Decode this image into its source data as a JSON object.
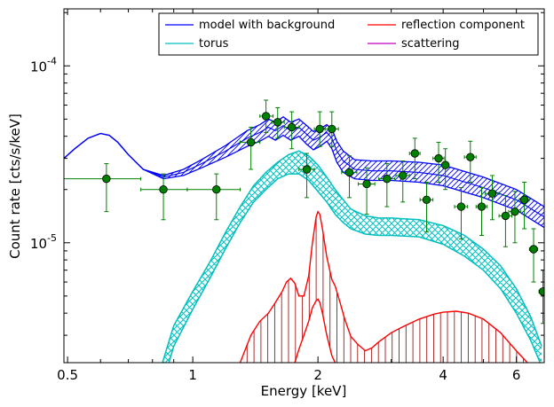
{
  "chart_data": {
    "type": "line",
    "title": "",
    "xlabel": "Energy [keV]",
    "ylabel": "Count rate [cts/s/keV]",
    "xscale": "log",
    "yscale": "log",
    "xlim": [
      0.49,
      7.0
    ],
    "ylim": [
      2.1e-06,
      0.00021
    ],
    "x_ticks": [
      {
        "value": 0.5,
        "label": "0.5"
      },
      {
        "value": 1,
        "label": "1"
      },
      {
        "value": 2,
        "label": "2"
      },
      {
        "value": 4,
        "label": "4"
      },
      {
        "value": 6,
        "label": "6"
      }
    ],
    "y_ticks": [
      {
        "value": 1e-05,
        "label": "10",
        "exp": "-5"
      },
      {
        "value": 0.0001,
        "label": "10",
        "exp": "-4"
      }
    ],
    "legend": {
      "placement": "top-right",
      "columns": 2,
      "entries": [
        {
          "label": "model with background",
          "color": "#0000ff"
        },
        {
          "label": "reflection component",
          "color": "#ff0000"
        },
        {
          "label": "torus",
          "color": "#00bfbf"
        },
        {
          "label": "scattering",
          "color": "#bf00bf"
        }
      ]
    },
    "series": [
      {
        "name": "model with background",
        "color": "#0000ff",
        "band": "hatch-line",
        "x": [
          0.49,
          0.52,
          0.56,
          0.6,
          0.63,
          0.66,
          0.7,
          0.76,
          0.85,
          0.95,
          1.05,
          1.2,
          1.35,
          1.45,
          1.52,
          1.58,
          1.65,
          1.72,
          1.8,
          1.88,
          1.95,
          2.02,
          2.1,
          2.16,
          2.22,
          2.3,
          2.45,
          2.7,
          3.0,
          3.5,
          4.0,
          5.0,
          6.0,
          7.0
        ],
        "y": [
          3e-05,
          3.4e-05,
          3.9e-05,
          4.15e-05,
          4.05e-05,
          3.7e-05,
          3.15e-05,
          2.6e-05,
          2.35e-05,
          2.5e-05,
          2.8e-05,
          3.3e-05,
          3.9e-05,
          4.2e-05,
          4.5e-05,
          4.3e-05,
          4.6e-05,
          4.3e-05,
          4.5e-05,
          4.1e-05,
          3.8e-05,
          3.95e-05,
          4.2e-05,
          3.9e-05,
          3.3e-05,
          2.9e-05,
          2.6e-05,
          2.55e-05,
          2.55e-05,
          2.5e-05,
          2.4e-05,
          2.05e-05,
          1.75e-05,
          1.4e-05
        ],
        "y_low": [
          3e-05,
          3.4e-05,
          3.9e-05,
          4.15e-05,
          4.05e-05,
          3.7e-05,
          3.15e-05,
          2.6e-05,
          2.3e-05,
          2.4e-05,
          2.65e-05,
          3.05e-05,
          3.5e-05,
          3.75e-05,
          4e-05,
          3.8e-05,
          4.05e-05,
          3.8e-05,
          4e-05,
          3.6e-05,
          3.35e-05,
          3.5e-05,
          3.75e-05,
          3.4e-05,
          2.85e-05,
          2.5e-05,
          2.3e-05,
          2.25e-05,
          2.25e-05,
          2.2e-05,
          2.1e-05,
          1.8e-05,
          1.53e-05,
          1.22e-05
        ],
        "y_high": [
          3e-05,
          3.4e-05,
          3.9e-05,
          4.15e-05,
          4.05e-05,
          3.7e-05,
          3.15e-05,
          2.6e-05,
          2.4e-05,
          2.6e-05,
          2.95e-05,
          3.55e-05,
          4.3e-05,
          4.65e-05,
          5e-05,
          4.8e-05,
          5.15e-05,
          4.8e-05,
          5e-05,
          4.6e-05,
          4.25e-05,
          4.4e-05,
          4.65e-05,
          4.4e-05,
          3.75e-05,
          3.3e-05,
          2.95e-05,
          2.9e-05,
          2.9e-05,
          2.85e-05,
          2.75e-05,
          2.35e-05,
          2e-05,
          1.6e-05
        ]
      },
      {
        "name": "torus",
        "color": "#00bfbf",
        "band": "crosshatch",
        "x": [
          0.84,
          0.9,
          1.0,
          1.1,
          1.2,
          1.3,
          1.4,
          1.5,
          1.6,
          1.7,
          1.8,
          1.9,
          2.0,
          2.1,
          2.2,
          2.3,
          2.4,
          2.6,
          2.8,
          3.0,
          3.5,
          4.0,
          4.5,
          5.0,
          5.5,
          6.0,
          6.5,
          6.9
        ],
        "y_low": [
          1.5e-06,
          2.6e-06,
          4.2e-06,
          6.3e-06,
          9.3e-06,
          1.3e-05,
          1.7e-05,
          2e-05,
          2.3e-05,
          2.45e-05,
          2.45e-05,
          2.25e-05,
          1.95e-05,
          1.7e-05,
          1.45e-05,
          1.3e-05,
          1.2e-05,
          1.12e-05,
          1.1e-05,
          1.1e-05,
          1.08e-05,
          9.8e-06,
          8.4e-06,
          7e-06,
          5.5e-06,
          4e-06,
          2.8e-06,
          2e-06
        ],
        "y_high": [
          2e-06,
          3.4e-06,
          5.3e-06,
          7.8e-06,
          1.15e-05,
          1.6e-05,
          2.1e-05,
          2.5e-05,
          2.85e-05,
          3.15e-05,
          3.3e-05,
          3.1e-05,
          2.75e-05,
          2.35e-05,
          2e-05,
          1.75e-05,
          1.55e-05,
          1.42e-05,
          1.38e-05,
          1.38e-05,
          1.35e-05,
          1.25e-05,
          1.1e-05,
          9.2e-06,
          7.4e-06,
          5.5e-06,
          3.8e-06,
          2.6e-06
        ]
      },
      {
        "name": "reflection component",
        "color": "#ff0000",
        "band": "vlines",
        "x": [
          1.3,
          1.38,
          1.45,
          1.52,
          1.58,
          1.64,
          1.68,
          1.72,
          1.76,
          1.8,
          1.85,
          1.9,
          1.94,
          1.98,
          2.0,
          2.02,
          2.05,
          2.1,
          2.16,
          2.2,
          2.26,
          2.32,
          2.4,
          2.5,
          2.6,
          2.7,
          2.8,
          3.0,
          3.2,
          3.5,
          3.8,
          4.0,
          4.3,
          4.6,
          5.0,
          5.5,
          6.0,
          6.5,
          7.0
        ],
        "y_high": [
          2.1e-06,
          3e-06,
          3.6e-06,
          4e-06,
          4.6e-06,
          5.3e-06,
          6e-06,
          6.3e-06,
          5.9e-06,
          5e-06,
          5e-06,
          6.5e-06,
          1e-05,
          1.4e-05,
          1.5e-05,
          1.45e-05,
          1.2e-05,
          8.3e-06,
          6.2e-06,
          5.7e-06,
          4.6e-06,
          3.7e-06,
          2.95e-06,
          2.65e-06,
          2.45e-06,
          2.55e-06,
          2.75e-06,
          3.1e-06,
          3.35e-06,
          3.7e-06,
          3.95e-06,
          4.05e-06,
          4.1e-06,
          4e-06,
          3.7e-06,
          3.1e-06,
          2.45e-06,
          2e-06,
          1.6e-06
        ],
        "y_low": [
          1.2e-06,
          1.5e-06,
          1.6e-06,
          1.7e-06,
          1.75e-06,
          1.8e-06,
          1.85e-06,
          1.9e-06,
          2.1e-06,
          2.5e-06,
          3e-06,
          3.6e-06,
          4.3e-06,
          4.7e-06,
          4.8e-06,
          4.6e-06,
          4e-06,
          3e-06,
          2.3e-06,
          2.1e-06,
          1.9e-06,
          1.8e-06,
          1.7e-06,
          1.6e-06,
          1.6e-06,
          1.6e-06,
          1.6e-06,
          1.6e-06,
          1.6e-06,
          1.6e-06,
          1.6e-06,
          1.6e-06,
          1.6e-06,
          1.6e-06,
          1.6e-06,
          1.6e-06,
          1.5e-06,
          1.4e-06,
          1.3e-06
        ]
      },
      {
        "name": "data",
        "color": "#008000",
        "type": "scatter",
        "points": [
          {
            "x": 0.62,
            "xlo": 0.49,
            "xhi": 0.75,
            "y": 2.3e-05,
            "ylo": 1.5e-05,
            "yhi": 2.8e-05
          },
          {
            "x": 0.85,
            "xlo": 0.75,
            "xhi": 0.97,
            "y": 2e-05,
            "ylo": 1.35e-05,
            "yhi": 2.45e-05
          },
          {
            "x": 1.14,
            "xlo": 0.97,
            "xhi": 1.3,
            "y": 2e-05,
            "ylo": 1.35e-05,
            "yhi": 2.45e-05
          },
          {
            "x": 1.38,
            "xlo": 1.3,
            "xhi": 1.45,
            "y": 3.7e-05,
            "ylo": 2.6e-05,
            "yhi": 4.5e-05
          },
          {
            "x": 1.5,
            "xlo": 1.45,
            "xhi": 1.56,
            "y": 5.2e-05,
            "ylo": 4.2e-05,
            "yhi": 6.4e-05
          },
          {
            "x": 1.6,
            "xlo": 1.55,
            "xhi": 1.66,
            "y": 4.8e-05,
            "ylo": 3.9e-05,
            "yhi": 5.8e-05
          },
          {
            "x": 1.73,
            "xlo": 1.66,
            "xhi": 1.8,
            "y": 4.5e-05,
            "ylo": 3.4e-05,
            "yhi": 5.5e-05
          },
          {
            "x": 1.88,
            "xlo": 1.8,
            "xhi": 1.96,
            "y": 2.6e-05,
            "ylo": 1.8e-05,
            "yhi": 3.2e-05
          },
          {
            "x": 2.02,
            "xlo": 1.96,
            "xhi": 2.08,
            "y": 4.4e-05,
            "ylo": 3.5e-05,
            "yhi": 5.5e-05
          },
          {
            "x": 2.16,
            "xlo": 2.08,
            "xhi": 2.24,
            "y": 4.4e-05,
            "ylo": 3.5e-05,
            "yhi": 5.5e-05
          },
          {
            "x": 2.38,
            "xlo": 2.28,
            "xhi": 2.48,
            "y": 2.5e-05,
            "ylo": 1.8e-05,
            "yhi": 3.1e-05
          },
          {
            "x": 2.62,
            "xlo": 2.5,
            "xhi": 2.74,
            "y": 2.15e-05,
            "ylo": 1.45e-05,
            "yhi": 2.65e-05
          },
          {
            "x": 2.93,
            "xlo": 2.8,
            "xhi": 3.06,
            "y": 2.3e-05,
            "ylo": 1.6e-05,
            "yhi": 2.8e-05
          },
          {
            "x": 3.2,
            "xlo": 3.08,
            "xhi": 3.32,
            "y": 2.4e-05,
            "ylo": 1.7e-05,
            "yhi": 2.9e-05
          },
          {
            "x": 3.42,
            "xlo": 3.32,
            "xhi": 3.52,
            "y": 3.2e-05,
            "ylo": 2.3e-05,
            "yhi": 3.9e-05
          },
          {
            "x": 3.65,
            "xlo": 3.52,
            "xhi": 3.78,
            "y": 1.75e-05,
            "ylo": 1.15e-05,
            "yhi": 2.2e-05
          },
          {
            "x": 3.9,
            "xlo": 3.78,
            "xhi": 4.02,
            "y": 3e-05,
            "ylo": 2.2e-05,
            "yhi": 3.7e-05
          },
          {
            "x": 4.05,
            "xlo": 3.98,
            "xhi": 4.12,
            "y": 2.75e-05,
            "ylo": 2e-05,
            "yhi": 3.4e-05
          },
          {
            "x": 4.42,
            "xlo": 4.26,
            "xhi": 4.58,
            "y": 1.6e-05,
            "ylo": 1.05e-05,
            "yhi": 2.05e-05
          },
          {
            "x": 4.65,
            "xlo": 4.5,
            "xhi": 4.8,
            "y": 3.05e-05,
            "ylo": 2.2e-05,
            "yhi": 3.75e-05
          },
          {
            "x": 4.95,
            "xlo": 4.8,
            "xhi": 5.1,
            "y": 1.6e-05,
            "ylo": 1.1e-05,
            "yhi": 2.05e-05
          },
          {
            "x": 5.25,
            "xlo": 5.05,
            "xhi": 5.45,
            "y": 1.9e-05,
            "ylo": 1.35e-05,
            "yhi": 2.4e-05
          },
          {
            "x": 5.65,
            "xlo": 5.45,
            "xhi": 5.85,
            "y": 1.42e-05,
            "ylo": 9.5e-06,
            "yhi": 1.85e-05
          },
          {
            "x": 5.95,
            "xlo": 5.75,
            "xhi": 6.15,
            "y": 1.5e-05,
            "ylo": 1e-05,
            "yhi": 1.95e-05
          },
          {
            "x": 6.27,
            "xlo": 6.1,
            "xhi": 6.44,
            "y": 1.75e-05,
            "ylo": 1.2e-05,
            "yhi": 2.2e-05
          },
          {
            "x": 6.6,
            "xlo": 6.45,
            "xhi": 6.75,
            "y": 9.2e-06,
            "ylo": 6e-06,
            "yhi": 1.2e-05
          },
          {
            "x": 6.95,
            "xlo": 6.8,
            "xhi": 7.1,
            "y": 5.3e-06,
            "ylo": 3.5e-06,
            "yhi": 7e-06
          }
        ]
      }
    ]
  }
}
